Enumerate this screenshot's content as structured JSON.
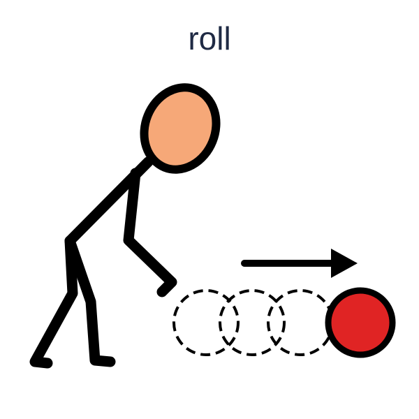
{
  "card": {
    "caption": "roll"
  },
  "figure": {
    "subject": "stick-person",
    "action": "rolling-ball",
    "colors": {
      "head_fill": "#f6a878",
      "ball_fill": "#e02424",
      "stroke": "#000000"
    }
  },
  "motion": {
    "direction": "right",
    "trail_ghosts": 3
  }
}
